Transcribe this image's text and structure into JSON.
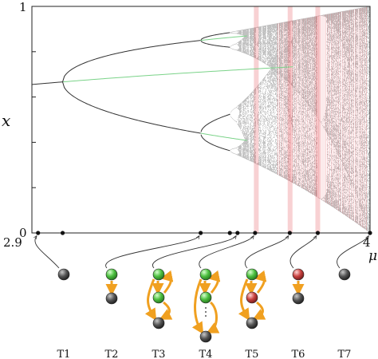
{
  "axes": {
    "y_label": "x",
    "x_label": "μ",
    "y_top_tick": "1",
    "y_bottom_tick": "0",
    "x_left_tick": "2.9",
    "x_right_tick": "4"
  },
  "chart_data": {
    "type": "bifurcation",
    "xlim": [
      2.9,
      4.0
    ],
    "ylim": [
      0,
      1
    ],
    "map": "logistic x_{n+1} = mu x_n (1 - x_n)",
    "markers_mu": [
      3.0,
      3.449,
      3.544,
      3.5689,
      3.626,
      3.739,
      3.83,
      4.0
    ]
  },
  "timeline": [
    {
      "label": "T1",
      "nodes": [
        "gray"
      ],
      "arrows": "none"
    },
    {
      "label": "T2",
      "nodes": [
        "green",
        "gray"
      ],
      "arrows": "down"
    },
    {
      "label": "T3",
      "nodes": [
        "green",
        "green",
        "gray"
      ],
      "arrows": "chain"
    },
    {
      "label": "T4",
      "nodes": [
        "green",
        "green",
        "gray"
      ],
      "arrows": "chain-dots"
    },
    {
      "label": "T5",
      "nodes": [
        "green",
        "red",
        "gray"
      ],
      "arrows": "chain"
    },
    {
      "label": "T6",
      "nodes": [
        "red",
        "gray"
      ],
      "arrows": "down"
    },
    {
      "label": "T7",
      "nodes": [
        "gray"
      ],
      "arrows": "none"
    }
  ],
  "colors": {
    "stable": "#7bd389",
    "unstable": "#e3474f",
    "chaotic_points": "#000000",
    "arrow": "#f0a020",
    "gray_node": "#555555",
    "green_node": "#4cbf3f",
    "red_node": "#c8413f"
  }
}
